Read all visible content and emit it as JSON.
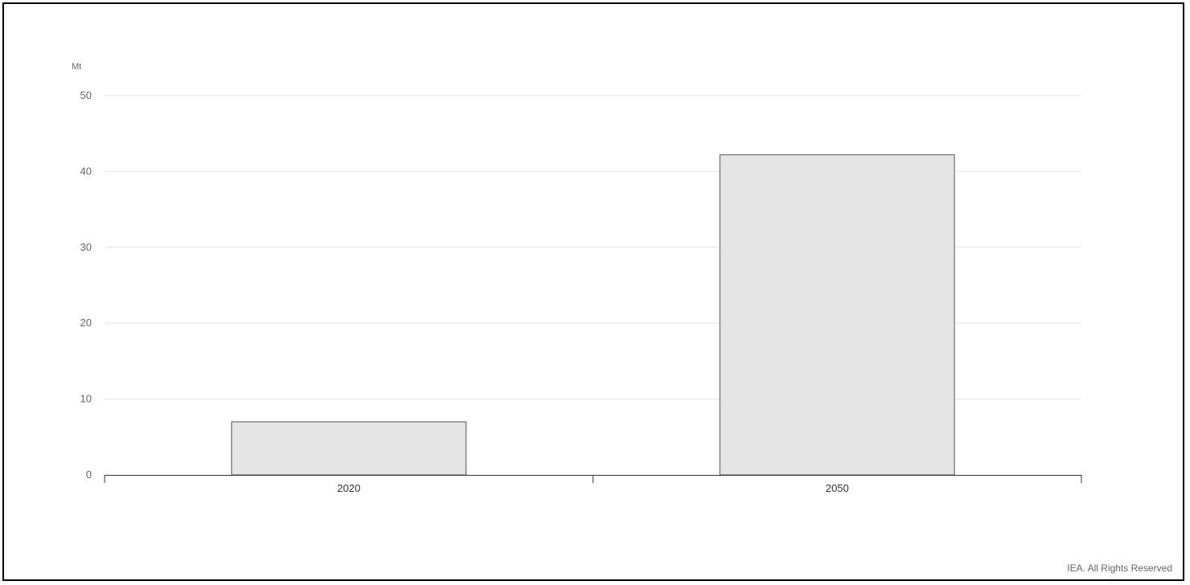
{
  "chart_data": {
    "type": "bar",
    "categories": [
      "2020",
      "2050"
    ],
    "values": [
      7,
      42.2
    ],
    "ylabel": "Mt",
    "ylim": [
      0,
      50
    ],
    "yticks": [
      0,
      10,
      20,
      30,
      40,
      50
    ],
    "grid": true,
    "legend": "none",
    "bar_color": "#e5e5e5",
    "bar_stroke": "#555555"
  },
  "credit": "IEA. All Rights Reserved"
}
